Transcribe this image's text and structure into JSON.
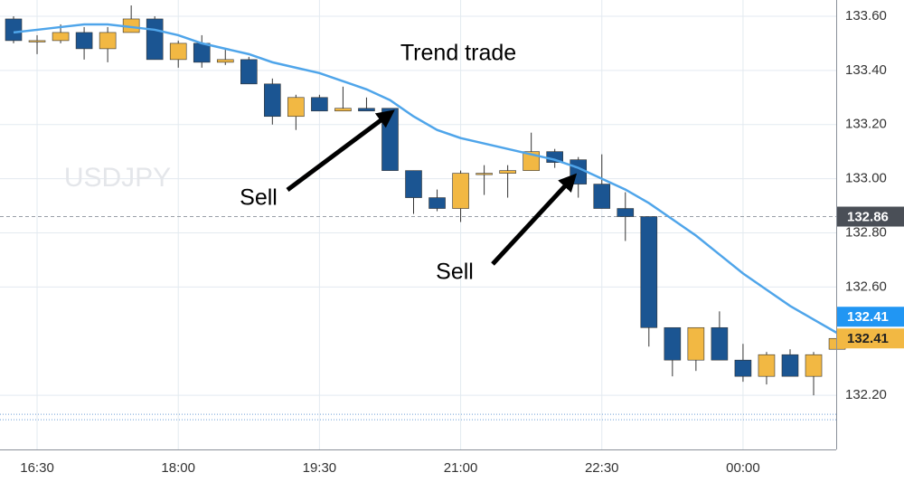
{
  "chart_data": {
    "type": "candlestick",
    "watermark": "USDJPY",
    "annotations": [
      "Trend trade",
      "Sell",
      "Sell"
    ],
    "categories": [
      null,
      "16:30",
      null,
      null,
      null,
      null,
      null,
      "18:00",
      null,
      null,
      null,
      null,
      null,
      "19:30",
      null,
      null,
      null,
      null,
      null,
      "21:00",
      null,
      null,
      null,
      null,
      null,
      "22:30",
      null,
      null,
      null,
      null,
      null,
      "00:00",
      null,
      null,
      null,
      null
    ],
    "open": [
      133.59,
      133.51,
      133.51,
      133.54,
      133.48,
      133.54,
      133.59,
      133.44,
      133.5,
      133.43,
      133.44,
      133.35,
      133.23,
      133.3,
      133.25,
      133.26,
      133.26,
      133.03,
      132.93,
      132.89,
      133.02,
      133.02,
      133.03,
      133.1,
      133.07,
      132.98,
      132.89,
      132.86,
      132.45,
      132.33,
      132.45,
      132.33,
      132.27,
      132.35,
      132.27,
      132.37
    ],
    "high": [
      133.6,
      133.53,
      133.57,
      133.56,
      133.56,
      133.64,
      133.6,
      133.51,
      133.53,
      133.48,
      133.45,
      133.37,
      133.31,
      133.31,
      133.34,
      133.3,
      133.26,
      133.03,
      132.96,
      133.03,
      133.05,
      133.05,
      133.17,
      133.11,
      133.08,
      133.09,
      132.95,
      132.86,
      132.45,
      132.45,
      132.51,
      132.39,
      132.36,
      132.37,
      132.36,
      132.42
    ],
    "low": [
      133.5,
      133.46,
      133.5,
      133.44,
      133.43,
      133.54,
      133.44,
      133.41,
      133.41,
      133.42,
      133.35,
      133.2,
      133.18,
      133.25,
      133.25,
      133.25,
      133.03,
      132.87,
      132.88,
      132.84,
      132.94,
      132.93,
      133.03,
      133.04,
      132.93,
      132.89,
      132.77,
      132.38,
      132.27,
      132.29,
      132.33,
      132.25,
      132.24,
      132.27,
      132.2,
      132.37
    ],
    "close": [
      133.51,
      133.51,
      133.54,
      133.48,
      133.54,
      133.59,
      133.44,
      133.5,
      133.43,
      133.44,
      133.35,
      133.23,
      133.3,
      133.25,
      133.26,
      133.25,
      133.03,
      132.93,
      132.89,
      133.02,
      133.02,
      133.03,
      133.1,
      133.06,
      132.98,
      132.89,
      132.86,
      132.45,
      132.33,
      132.45,
      132.33,
      132.27,
      132.35,
      132.27,
      132.35,
      132.41
    ],
    "up_color": "#f2b843",
    "down_color": "#1b5592",
    "moving_average": {
      "color": "#4fa5ea",
      "values": [
        133.54,
        133.55,
        133.56,
        133.57,
        133.57,
        133.56,
        133.55,
        133.53,
        133.5,
        133.48,
        133.46,
        133.43,
        133.41,
        133.39,
        133.36,
        133.33,
        133.29,
        133.23,
        133.18,
        133.15,
        133.13,
        133.11,
        133.09,
        133.07,
        133.04,
        133.0,
        132.96,
        132.91,
        132.85,
        132.79,
        132.72,
        132.65,
        132.59,
        132.53,
        132.48,
        132.43
      ]
    },
    "price_lines": [
      {
        "value": 132.86,
        "label": "132.86",
        "color": "#4a4f57"
      }
    ],
    "price_badges": [
      {
        "value": 132.41,
        "label": "132.41",
        "color": "#2196f3"
      },
      {
        "value": 132.41,
        "label": "132.41",
        "color": "#f2b843"
      }
    ],
    "dotted_lines": [
      132.13,
      132.11
    ],
    "ylim": [
      132.0,
      133.66
    ],
    "yticks": [
      {
        "value": 133.6,
        "label": "133.60"
      },
      {
        "value": 133.4,
        "label": "133.40"
      },
      {
        "value": 133.2,
        "label": "133.20"
      },
      {
        "value": 133.0,
        "label": "133.00"
      },
      {
        "value": 132.8,
        "label": "132.80"
      },
      {
        "value": 132.6,
        "label": "132.60"
      },
      {
        "value": 132.2,
        "label": "132.20"
      }
    ],
    "grid": true
  }
}
